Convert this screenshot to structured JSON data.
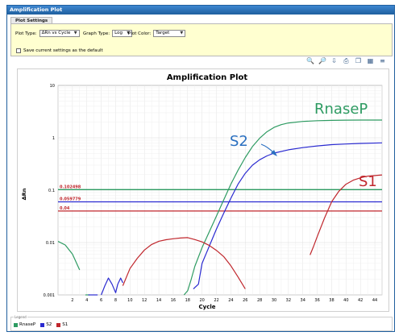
{
  "window": {
    "title": "Amplification Plot"
  },
  "settings": {
    "tab_label": "Plot Settings",
    "plot_type_label": "Plot Type:",
    "plot_type_value": "ΔRn vs Cycle",
    "graph_type_label": "Graph Type:",
    "graph_type_value": "Log",
    "plot_color_label": "Plot Color:",
    "plot_color_value": "Target",
    "save_default_label": "Save current settings as the default",
    "save_default_checked": false
  },
  "toolbar": {
    "icons": [
      "zoom-in-icon",
      "zoom-out-icon",
      "export-icon",
      "print-icon",
      "copy-icon",
      "chart-options-icon",
      "legend-icon"
    ]
  },
  "annotations": {
    "rnasep": "RnaseP",
    "s2": "S2",
    "s1": "S1"
  },
  "legend": {
    "title": "Legend",
    "items": [
      {
        "label": "RnaseP",
        "color": "#2e9b62"
      },
      {
        "label": "S2",
        "color": "#2a2ad0"
      },
      {
        "label": "S1",
        "color": "#c0272d"
      }
    ]
  },
  "chart_data": {
    "type": "line",
    "title": "Amplification Plot",
    "xlabel": "Cycle",
    "ylabel": "ΔRn",
    "yscale": "log",
    "ylim": [
      0.001,
      10
    ],
    "xlim": [
      0,
      45
    ],
    "xticks": [
      2,
      4,
      6,
      8,
      10,
      12,
      14,
      16,
      18,
      20,
      22,
      24,
      26,
      28,
      30,
      32,
      34,
      36,
      38,
      40,
      42,
      44
    ],
    "yticks": [
      0.001,
      0.01,
      0.1,
      1,
      10
    ],
    "ytick_labels": [
      "0.001",
      "0.01",
      "0.1",
      "1",
      "10"
    ],
    "grid": true,
    "thresholds": [
      {
        "series": "RnaseP",
        "value": 0.102498,
        "label": "0.102498",
        "color": "#2e9b62"
      },
      {
        "series": "S2",
        "value": 0.059779,
        "label": "0.059779",
        "color": "#2a2ad0"
      },
      {
        "series": "S1",
        "value": 0.04,
        "label": "0.04",
        "color": "#c0272d"
      }
    ],
    "series": [
      {
        "name": "RnaseP",
        "color": "#2e9b62",
        "segments": [
          {
            "x": [
              0,
              1,
              2,
              3
            ],
            "y": [
              0.0105,
              0.009,
              0.006,
              0.003
            ]
          },
          {
            "x": [
              3.8,
              4,
              4.4
            ],
            "y": [
              0.001,
              0.0009,
              0.0008
            ]
          },
          {
            "x": [
              17.5,
              18,
              18.5,
              19,
              20,
              21,
              22,
              23,
              24,
              25,
              26,
              27,
              28,
              29,
              30,
              31,
              32,
              34,
              36,
              38,
              40,
              42,
              45
            ],
            "y": [
              0.0008,
              0.0012,
              0.002,
              0.0035,
              0.008,
              0.016,
              0.032,
              0.065,
              0.13,
              0.24,
              0.42,
              0.68,
              0.98,
              1.3,
              1.58,
              1.78,
              1.92,
              2.05,
              2.12,
              2.15,
              2.17,
              2.18,
              2.18
            ]
          }
        ]
      },
      {
        "name": "S2",
        "color": "#2a2ad0",
        "segments": [
          {
            "x": [
              4.2,
              4.6,
              5,
              5.5
            ],
            "y": [
              0.0007,
              0.0009,
              0.0008,
              0.0007
            ]
          },
          {
            "x": [
              6,
              6.5,
              7,
              7.5,
              8,
              8.3,
              8.7,
              9
            ],
            "y": [
              0.0009,
              0.0015,
              0.0021,
              0.0016,
              0.0011,
              0.0016,
              0.0021,
              0.0017
            ]
          },
          {
            "x": [
              18.8,
              19.5,
              20,
              21,
              22,
              23,
              24,
              25,
              26,
              27,
              28,
              29,
              30,
              32,
              34,
              36,
              38,
              40,
              42,
              45
            ],
            "y": [
              0.0013,
              0.0016,
              0.004,
              0.0085,
              0.018,
              0.036,
              0.07,
              0.13,
              0.21,
              0.3,
              0.38,
              0.45,
              0.51,
              0.59,
              0.65,
              0.7,
              0.74,
              0.76,
              0.78,
              0.8
            ]
          }
        ]
      },
      {
        "name": "S1",
        "color": "#c0272d",
        "segments": [
          {
            "x": [
              9,
              10,
              11,
              12,
              13,
              14,
              15,
              16,
              17,
              18,
              19,
              20,
              21,
              22,
              23,
              24,
              25,
              26
            ],
            "y": [
              0.0015,
              0.0032,
              0.005,
              0.0072,
              0.0092,
              0.0106,
              0.0113,
              0.0118,
              0.0122,
              0.0124,
              0.0114,
              0.0103,
              0.0088,
              0.0071,
              0.0054,
              0.0036,
              0.0022,
              0.0013
            ]
          },
          {
            "x": [
              35,
              35.5,
              36,
              37,
              38,
              39,
              40,
              41,
              42,
              43,
              44,
              45
            ],
            "y": [
              0.0058,
              0.0085,
              0.013,
              0.029,
              0.06,
              0.095,
              0.13,
              0.155,
              0.172,
              0.185,
              0.19,
              0.195
            ]
          }
        ]
      }
    ]
  }
}
